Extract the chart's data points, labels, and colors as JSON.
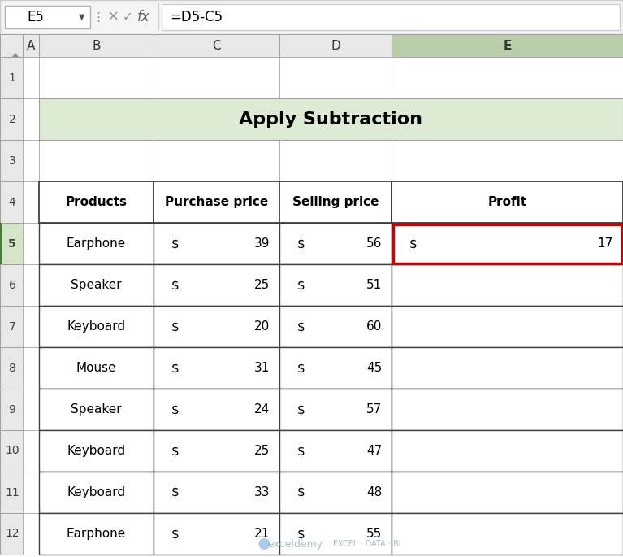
{
  "title": "Apply Subtraction",
  "title_bg": "#deebd4",
  "formula_bar_text": "=D5-C5",
  "cell_ref": "E5",
  "col_headers": [
    "A",
    "B",
    "C",
    "D",
    "E"
  ],
  "row_numbers": [
    "1",
    "2",
    "3",
    "4",
    "5",
    "6",
    "7",
    "8",
    "9",
    "10",
    "11",
    "12"
  ],
  "table_headers": [
    "Products",
    "Purchase price",
    "Selling price",
    "Profit"
  ],
  "products": [
    "Earphone",
    "Speaker",
    "Keyboard",
    "Mouse",
    "Speaker",
    "Keyboard",
    "Keyboard",
    "Earphone"
  ],
  "purchase_prices": [
    39,
    25,
    20,
    31,
    24,
    25,
    33,
    21
  ],
  "selling_prices": [
    56,
    51,
    60,
    45,
    57,
    47,
    48,
    55
  ],
  "profit_row": 0,
  "profit_value": 17,
  "active_col_bg": "#b8ceaa",
  "active_row_bg": "#d6e4c8",
  "active_row_side": "#4a7c3f",
  "highlight_cell_border": "#cc0000",
  "col_hdr_bg": "#e8e8e8",
  "row_hdr_bg": "#e8e8e8",
  "grid_color": "#a0a0a0",
  "table_border": "#404040",
  "watermark_text": "exceldemy",
  "watermark_sub": "EXCEL · DATA · BI"
}
